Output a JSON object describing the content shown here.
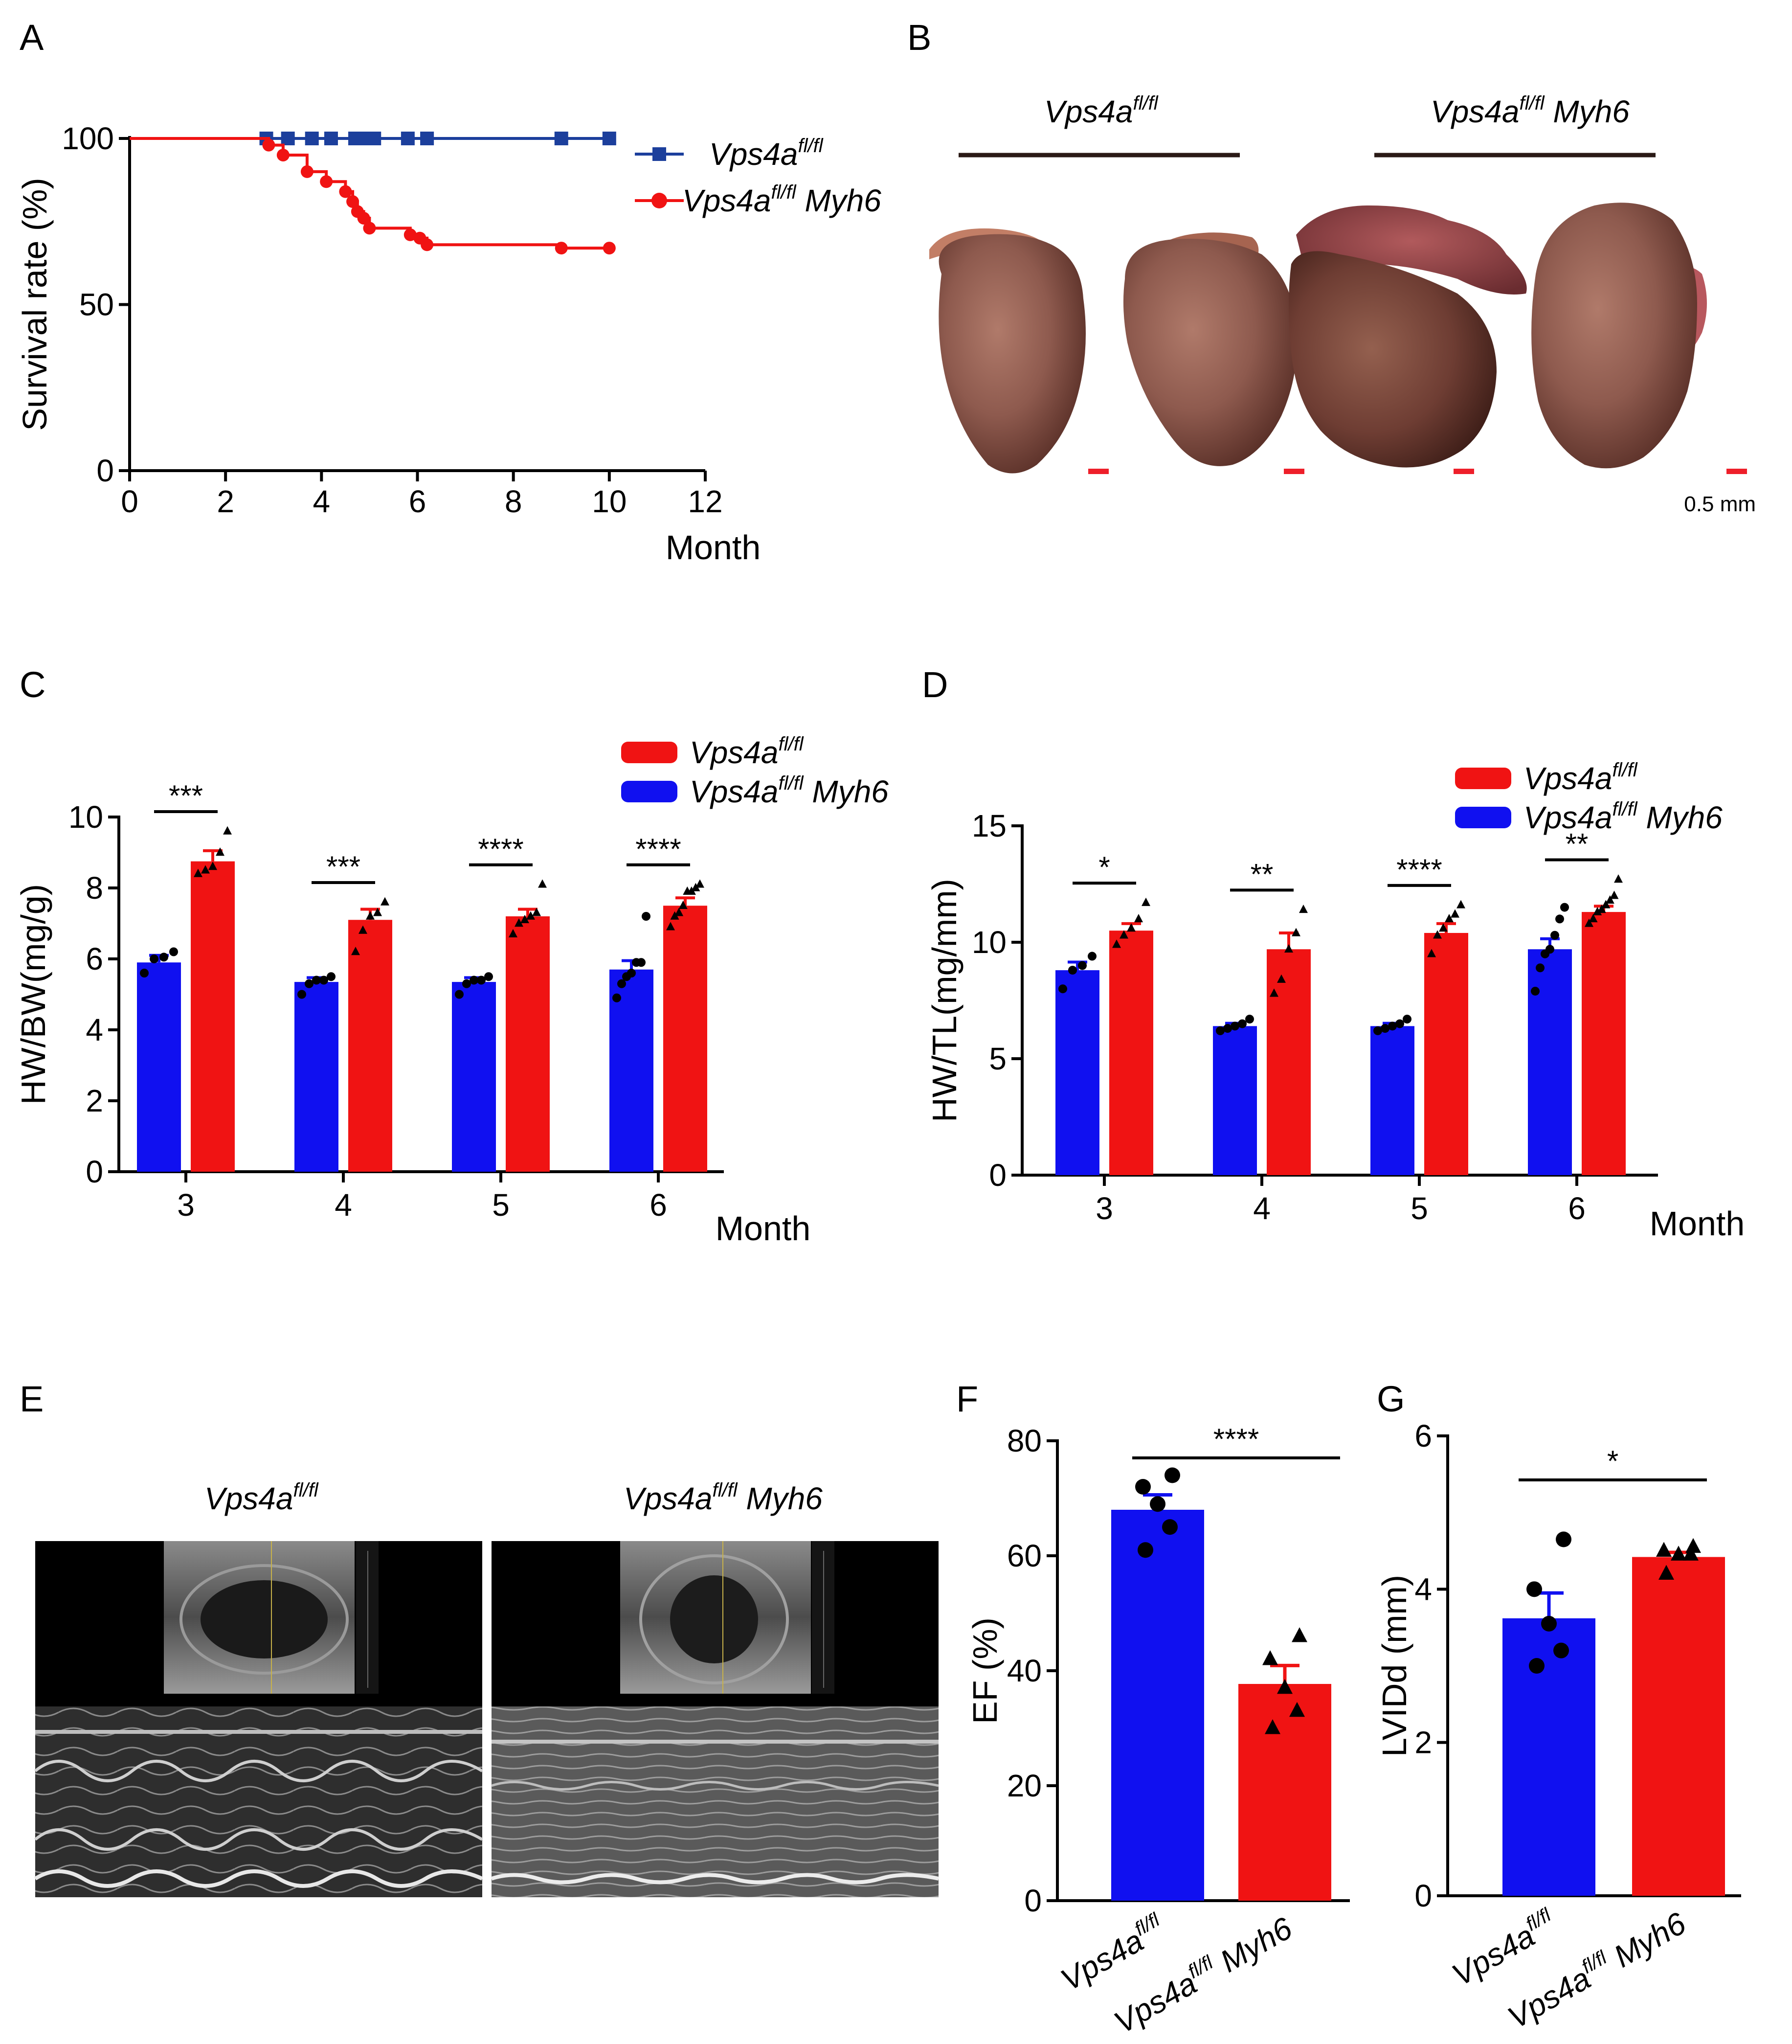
{
  "colors": {
    "red": "#f01313",
    "blue": "#1010f0",
    "navy": "#1c3f9c"
  },
  "icons": {
    "square_marker": "square-marker-icon",
    "circle_marker": "circle-marker-icon"
  },
  "panels": {
    "A": {
      "letter": "A"
    },
    "B": {
      "letter": "B",
      "group_left": "Vps4a",
      "group_left_sup": "fl/fl",
      "group_right": "Vps4a",
      "group_right_sup": "fl/fl",
      "group_right_suffix": " Myh6",
      "scale_label": "0.5 mm"
    },
    "C": {
      "letter": "C"
    },
    "D": {
      "letter": "D"
    },
    "E": {
      "letter": "E",
      "left_title": "Vps4a",
      "left_sup": "fl/fl",
      "right_title": "Vps4a",
      "right_sup": "fl/fl",
      "right_suffix": " Myh6"
    },
    "F": {
      "letter": "F"
    },
    "G": {
      "letter": "G"
    }
  },
  "chart_data": [
    {
      "id": "A",
      "type": "line",
      "title": "",
      "xlabel": "Month",
      "ylabel": "Survival rate (%)",
      "xlim": [
        0,
        12
      ],
      "ylim": [
        0,
        100
      ],
      "xticks": [
        "0",
        "2",
        "4",
        "6",
        "8",
        "10",
        "12"
      ],
      "yticks": [
        "0",
        "50",
        "100"
      ],
      "legend": "top-right",
      "series": [
        {
          "name": "Vps4a",
          "name_sup": "fl/fl",
          "name_suffix": "",
          "color": "#1c3f9c",
          "marker": "square",
          "steps": [
            [
              0,
              100
            ],
            [
              10,
              100
            ]
          ],
          "censor": [
            [
              2.85,
              100
            ],
            [
              3.3,
              100
            ],
            [
              3.8,
              100
            ],
            [
              4.2,
              100
            ],
            [
              4.7,
              100
            ],
            [
              4.9,
              100
            ],
            [
              5.1,
              100
            ],
            [
              5.8,
              100
            ],
            [
              6.2,
              100
            ],
            [
              9,
              100
            ],
            [
              10,
              100
            ]
          ]
        },
        {
          "name": "Vps4a",
          "name_sup": "fl/fl",
          "name_suffix": " Myh6",
          "color": "#f01313",
          "marker": "circle",
          "steps": [
            [
              0,
              100
            ],
            [
              2.9,
              100
            ],
            [
              2.9,
              98
            ],
            [
              3.2,
              98
            ],
            [
              3.2,
              95
            ],
            [
              3.7,
              95
            ],
            [
              3.7,
              90
            ],
            [
              4.1,
              90
            ],
            [
              4.1,
              87
            ],
            [
              4.5,
              87
            ],
            [
              4.5,
              84
            ],
            [
              4.65,
              84
            ],
            [
              4.65,
              81
            ],
            [
              4.75,
              81
            ],
            [
              4.75,
              78
            ],
            [
              4.88,
              78
            ],
            [
              4.88,
              76
            ],
            [
              5.0,
              76
            ],
            [
              5.0,
              73
            ],
            [
              5.85,
              73
            ],
            [
              5.85,
              71
            ],
            [
              6.05,
              71
            ],
            [
              6.05,
              70
            ],
            [
              6.2,
              70
            ],
            [
              6.2,
              68
            ],
            [
              9.0,
              68
            ],
            [
              9.0,
              67
            ],
            [
              10,
              67
            ]
          ],
          "points": [
            [
              2.9,
              98
            ],
            [
              3.2,
              95
            ],
            [
              3.7,
              90
            ],
            [
              4.1,
              87
            ],
            [
              4.5,
              84
            ],
            [
              4.65,
              81
            ],
            [
              4.75,
              78
            ],
            [
              4.88,
              76
            ],
            [
              5.0,
              73
            ],
            [
              5.85,
              71
            ],
            [
              6.05,
              70
            ],
            [
              6.2,
              68
            ],
            [
              9.0,
              67
            ],
            [
              10,
              67
            ]
          ]
        }
      ]
    },
    {
      "id": "C",
      "type": "bar",
      "title": "",
      "xlabel": "Month",
      "ylabel": "HW/BW(mg/g)",
      "ylim": [
        0,
        10
      ],
      "yticks": [
        "0",
        "2",
        "4",
        "6",
        "8",
        "10"
      ],
      "categories": [
        "3",
        "4",
        "5",
        "6"
      ],
      "legend": "top-right",
      "legend_entries": [
        {
          "name": "Vps4a",
          "sup": "fl/fl",
          "suffix": "",
          "color": "#f01313"
        },
        {
          "name": "Vps4a",
          "sup": "fl/fl",
          "suffix": " Myh6",
          "color": "#1010f0"
        }
      ],
      "series": [
        {
          "color": "#1010f0",
          "marker": "circle",
          "values": [
            5.9,
            5.35,
            5.35,
            5.7
          ],
          "err": [
            0.2,
            0.12,
            0.12,
            0.25
          ],
          "points": [
            [
              5.6,
              6.0,
              6.05,
              6.2
            ],
            [
              5.0,
              5.3,
              5.4,
              5.4,
              5.5
            ],
            [
              5.0,
              5.3,
              5.4,
              5.4,
              5.5
            ],
            [
              4.9,
              5.3,
              5.5,
              5.6,
              5.9,
              5.9,
              7.2
            ]
          ]
        },
        {
          "color": "#f01313",
          "marker": "triangle",
          "values": [
            8.75,
            7.1,
            7.2,
            7.5
          ],
          "err": [
            0.3,
            0.3,
            0.2,
            0.22
          ],
          "points": [
            [
              8.4,
              8.5,
              8.6,
              9.0,
              9.6
            ],
            [
              6.2,
              6.8,
              7.2,
              7.3,
              7.6
            ],
            [
              6.7,
              7.0,
              7.1,
              7.2,
              7.3,
              8.1
            ],
            [
              6.9,
              7.2,
              7.3,
              7.5,
              7.9,
              7.9,
              8.0,
              8.1
            ]
          ]
        }
      ],
      "significance": [
        "***",
        "***",
        "****",
        "****"
      ]
    },
    {
      "id": "D",
      "type": "bar",
      "title": "",
      "xlabel": "Month",
      "ylabel": "HW/TL(mg/mm)",
      "ylim": [
        0,
        15
      ],
      "yticks": [
        "0",
        "5",
        "10",
        "15"
      ],
      "categories": [
        "3",
        "4",
        "5",
        "6"
      ],
      "legend": "top-right",
      "legend_entries": [
        {
          "name": "Vps4a",
          "sup": "fl/fl",
          "suffix": "",
          "color": "#f01313"
        },
        {
          "name": "Vps4a",
          "sup": "fl/fl",
          "suffix": " Myh6",
          "color": "#1010f0"
        }
      ],
      "series": [
        {
          "color": "#1010f0",
          "marker": "circle",
          "values": [
            8.8,
            6.4,
            6.4,
            9.7
          ],
          "err": [
            0.35,
            0.12,
            0.12,
            0.45
          ],
          "points": [
            [
              8.0,
              8.8,
              9.0,
              9.4
            ],
            [
              6.2,
              6.3,
              6.4,
              6.5,
              6.7
            ],
            [
              6.2,
              6.3,
              6.4,
              6.5,
              6.7
            ],
            [
              7.9,
              8.9,
              9.5,
              9.7,
              10.3,
              11.0,
              11.5
            ]
          ]
        },
        {
          "color": "#f01313",
          "marker": "triangle",
          "values": [
            10.5,
            9.7,
            10.4,
            11.3
          ],
          "err": [
            0.3,
            0.7,
            0.4,
            0.25
          ],
          "points": [
            [
              9.9,
              10.3,
              10.6,
              11.0,
              11.7
            ],
            [
              7.8,
              8.4,
              9.7,
              10.4,
              11.4
            ],
            [
              9.5,
              10.3,
              10.6,
              11.0,
              11.2,
              11.6
            ],
            [
              10.8,
              11.0,
              11.3,
              11.4,
              11.6,
              11.8,
              12.0,
              12.7
            ]
          ]
        }
      ],
      "significance": [
        "*",
        "**",
        "****",
        "**"
      ]
    },
    {
      "id": "F",
      "type": "bar",
      "title": "",
      "xlabel": "",
      "ylabel": "EF (%)",
      "ylim": [
        0,
        80
      ],
      "yticks": [
        "0",
        "20",
        "40",
        "60",
        "80"
      ],
      "categories": [
        {
          "name": "Vps4a",
          "sup": "fl/fl",
          "suffix": ""
        },
        {
          "name": "Vps4a",
          "sup": "fl/fl",
          "suffix": " Myh6"
        }
      ],
      "values": [
        68,
        37.7
      ],
      "err": [
        2.6,
        3.2
      ],
      "colors": [
        "#1010f0",
        "#f01313"
      ],
      "markers": [
        "circle",
        "triangle"
      ],
      "points": [
        [
          61,
          65,
          69,
          72,
          74
        ],
        [
          30,
          33,
          37,
          42,
          46
        ]
      ],
      "significance": "****"
    },
    {
      "id": "G",
      "type": "bar",
      "title": "",
      "xlabel": "",
      "ylabel": "LVIDd (mm)",
      "ylim": [
        0,
        6
      ],
      "yticks": [
        "0",
        "2",
        "4",
        "6"
      ],
      "categories": [
        {
          "name": "Vps4a",
          "sup": "fl/fl",
          "suffix": ""
        },
        {
          "name": "Vps4a",
          "sup": "fl/fl",
          "suffix": " Myh6"
        }
      ],
      "values": [
        3.62,
        4.42
      ],
      "err": [
        0.33,
        0.06
      ],
      "colors": [
        "#1010f0",
        "#f01313"
      ],
      "markers": [
        "circle",
        "triangle"
      ],
      "points": [
        [
          3.0,
          3.2,
          3.55,
          4.0,
          4.65
        ],
        [
          4.2,
          4.45,
          4.45,
          4.5,
          4.55
        ]
      ],
      "significance": "*"
    }
  ]
}
